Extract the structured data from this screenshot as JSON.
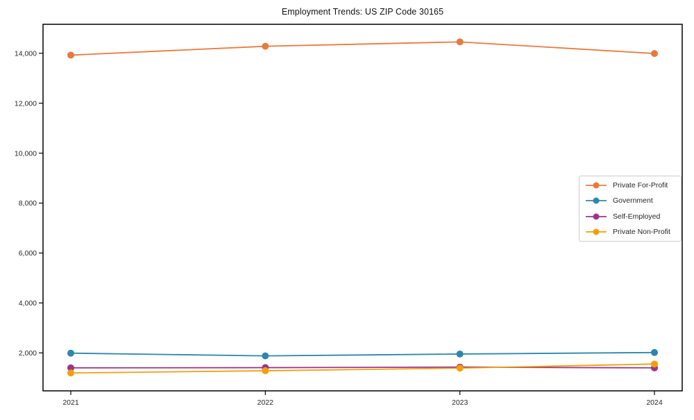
{
  "title": "Employment Trends: US ZIP Code 30165",
  "chart_data": {
    "type": "line",
    "title": "Employment Trends: US ZIP Code 30165",
    "xlabel": "",
    "ylabel": "",
    "categories": [
      "2021",
      "2022",
      "2023",
      "2024"
    ],
    "x": [
      2021,
      2022,
      2023,
      2024
    ],
    "series": [
      {
        "name": "Private For-Profit",
        "color": "#E87A3E",
        "values": [
          13925,
          14280,
          14455,
          13990
        ]
      },
      {
        "name": "Government",
        "color": "#2E86AB",
        "values": [
          1990,
          1880,
          1955,
          2015
        ]
      },
      {
        "name": "Self-Employed",
        "color": "#9C3587",
        "values": [
          1400,
          1410,
          1430,
          1400
        ]
      },
      {
        "name": "Private Non-Profit",
        "color": "#F0A00A",
        "values": [
          1195,
          1285,
          1390,
          1555
        ]
      }
    ],
    "yticks": [
      2000,
      4000,
      6000,
      8000,
      10000,
      12000,
      14000
    ],
    "ytick_labels": [
      "2,000",
      "4,000",
      "6,000",
      "8,000",
      "10,000",
      "12,000",
      "14,000"
    ],
    "ylim": [
      480,
      15160
    ],
    "grid": false,
    "legend_position": "center-right",
    "marker": "circle",
    "frame_color": "#000000",
    "tick_color": "#262626"
  }
}
